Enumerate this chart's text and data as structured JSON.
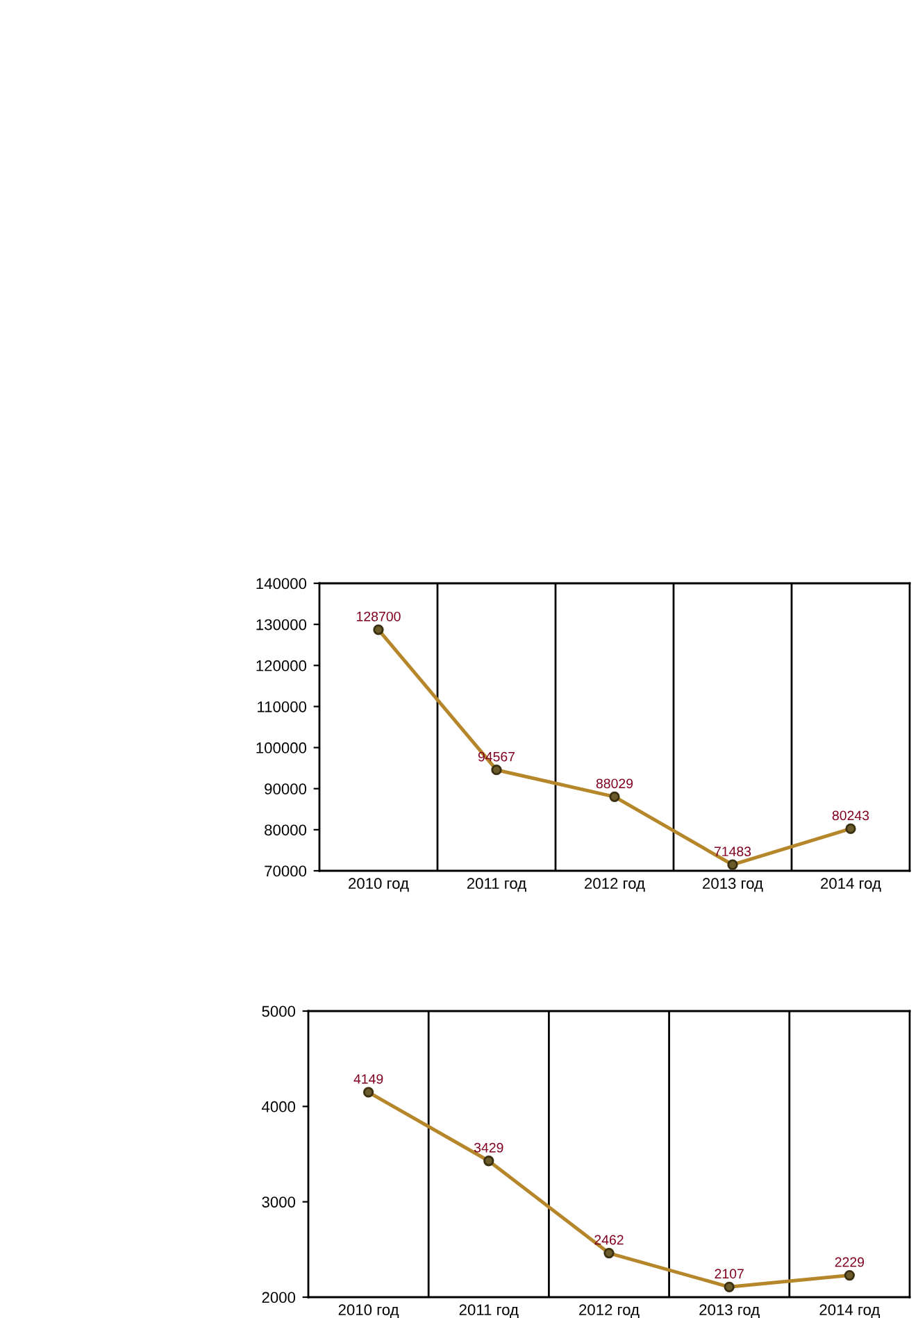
{
  "chart_data": [
    {
      "type": "line",
      "categories": [
        "2010 год",
        "2011 год",
        "2012 год",
        "2013 год",
        "2014 год"
      ],
      "series": [
        {
          "color": "#b5862a",
          "values": [
            128700,
            94567,
            88029,
            71483,
            80243
          ]
        }
      ],
      "ylim": [
        70000,
        140000
      ],
      "yticks": [
        70000,
        80000,
        90000,
        100000,
        110000,
        120000,
        130000,
        140000
      ],
      "data_labels": true,
      "marker": "circle",
      "grid": "x",
      "legend": false
    },
    {
      "type": "line",
      "categories": [
        "2010 год",
        "2011 год",
        "2012 год",
        "2013 год",
        "2014 год"
      ],
      "series": [
        {
          "color": "#b5862a",
          "values": [
            4149,
            3429,
            2462,
            2107,
            2229
          ]
        }
      ],
      "ylim": [
        2000,
        5000
      ],
      "yticks": [
        2000,
        3000,
        4000,
        5000
      ],
      "data_labels": true,
      "marker": "circle",
      "grid": "x",
      "legend": false
    }
  ]
}
